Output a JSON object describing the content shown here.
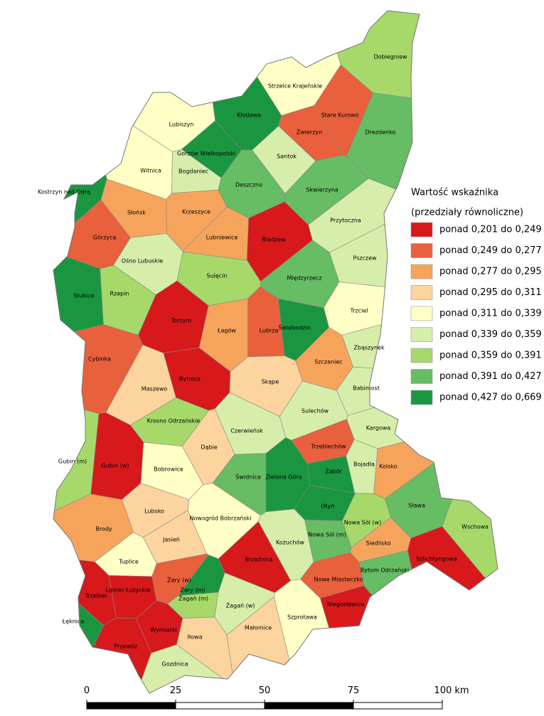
{
  "legend": {
    "title": "Wartość wskaźnika",
    "subtitle": "(przedziały równoliczne)",
    "classes": [
      {
        "label": "ponad 0,201 do 0,249",
        "color": "#d7191c"
      },
      {
        "label": "ponad 0,249 do 0,277",
        "color": "#e8603c"
      },
      {
        "label": "ponad 0,277 do 0,295",
        "color": "#f6a45c"
      },
      {
        "label": "ponad 0,295 do 0,311",
        "color": "#fdd49e"
      },
      {
        "label": "ponad 0,311 do 0,339",
        "color": "#ffffc6"
      },
      {
        "label": "ponad 0,339 do 0,359",
        "color": "#d6eeaa"
      },
      {
        "label": "ponad 0,359 do 0,391",
        "color": "#a6d96a"
      },
      {
        "label": "ponad 0,391 do 0,427",
        "color": "#66bd63"
      },
      {
        "label": "ponad 0,427 do 0,669",
        "color": "#1a9641"
      }
    ]
  },
  "regions": [
    {
      "label": "Dobiegniew",
      "color": "#a6d96a"
    },
    {
      "label": "Strzelce Krajeńskie",
      "color": "#ffffc6"
    },
    {
      "label": "Kłodawa",
      "color": "#1a9641"
    },
    {
      "label": "Stare Kurowo",
      "color": "#e8603c"
    },
    {
      "label": "Lubiszyn",
      "color": "#ffffc6"
    },
    {
      "label": "Zwierzyn",
      "color": "#e8603c"
    },
    {
      "label": "Drezdenko",
      "color": "#66bd63"
    },
    {
      "label": "Gorzów Wielkopolski",
      "color": "#1a9641"
    },
    {
      "label": "Santok",
      "color": "#d6eeaa"
    },
    {
      "label": "Witnica",
      "color": "#ffffc6"
    },
    {
      "label": "Bogdaniec",
      "color": "#d6eeaa"
    },
    {
      "label": "Deszczno",
      "color": "#66bd63"
    },
    {
      "label": "Skwierzyna",
      "color": "#66bd63"
    },
    {
      "label": "Kostrzyn nad Odrą",
      "color": "#1a9641"
    },
    {
      "label": "Słońsk",
      "color": "#f6a45c"
    },
    {
      "label": "Krzeszyce",
      "color": "#f6a45c"
    },
    {
      "label": "Przytoczna",
      "color": "#d6eeaa"
    },
    {
      "label": "Górzyca",
      "color": "#e8603c"
    },
    {
      "label": "Lubniewice",
      "color": "#f6a45c"
    },
    {
      "label": "Bledzew",
      "color": "#d7191c"
    },
    {
      "label": "Ośno Lubuskie",
      "color": "#d6eeaa"
    },
    {
      "label": "Pszczew",
      "color": "#d6eeaa"
    },
    {
      "label": "Sulęcin",
      "color": "#a6d96a"
    },
    {
      "label": "Międzyrzecz",
      "color": "#66bd63"
    },
    {
      "label": "Słubice",
      "color": "#1a9641"
    },
    {
      "label": "Rzepin",
      "color": "#a6d96a"
    },
    {
      "label": "Trzciel",
      "color": "#ffffc6"
    },
    {
      "label": "Torzym",
      "color": "#d7191c"
    },
    {
      "label": "Łagów",
      "color": "#f6a45c"
    },
    {
      "label": "Lubrza",
      "color": "#e8603c"
    },
    {
      "label": "Świebodzin",
      "color": "#1a9641"
    },
    {
      "label": "Zbąszynek",
      "color": "#d6eeaa"
    },
    {
      "label": "Cybinka",
      "color": "#e8603c"
    },
    {
      "label": "Szczaniec",
      "color": "#f6a45c"
    },
    {
      "label": "Bytnica",
      "color": "#d7191c"
    },
    {
      "label": "Skąpe",
      "color": "#fdd49e"
    },
    {
      "label": "Babimost",
      "color": "#d6eeaa"
    },
    {
      "label": "Maszewo",
      "color": "#fdd49e"
    },
    {
      "label": "Sulechów",
      "color": "#d6eeaa"
    },
    {
      "label": "Krosno Odrzańskie",
      "color": "#a6d96a"
    },
    {
      "label": "Kargowa",
      "color": "#d6eeaa"
    },
    {
      "label": "Czerwieńsk",
      "color": "#d6eeaa"
    },
    {
      "label": "Trzebiechów",
      "color": "#e8603c"
    },
    {
      "label": "Gubin (m)",
      "color": "#a6d96a"
    },
    {
      "label": "Gubin (w)",
      "color": "#d7191c"
    },
    {
      "label": "Dąbie",
      "color": "#fdd49e"
    },
    {
      "label": "Bojadła",
      "color": "#d6eeaa"
    },
    {
      "label": "Kolsko",
      "color": "#f6a45c"
    },
    {
      "label": "Bobrowice",
      "color": "#ffffc6"
    },
    {
      "label": "Zabór",
      "color": "#1a9641"
    },
    {
      "label": "Świdnica",
      "color": "#66bd63"
    },
    {
      "label": "Zielona Góra",
      "color": "#1a9641"
    },
    {
      "label": "Sława",
      "color": "#66bd63"
    },
    {
      "label": "Otyń",
      "color": "#1a9641"
    },
    {
      "label": "Lubsko",
      "color": "#fdd49e"
    },
    {
      "label": "Wschowa",
      "color": "#a6d96a"
    },
    {
      "label": "Nowogród Bobrzański",
      "color": "#ffffc6"
    },
    {
      "label": "Nowa Sól (w)",
      "color": "#a6d96a"
    },
    {
      "label": "Brody",
      "color": "#f6a45c"
    },
    {
      "label": "Jasień",
      "color": "#fdd49e"
    },
    {
      "label": "Nowa Sól (m)",
      "color": "#66bd63"
    },
    {
      "label": "Kożuchów",
      "color": "#d6eeaa"
    },
    {
      "label": "Siedlisko",
      "color": "#f6a45c"
    },
    {
      "label": "Szlichtyngowa",
      "color": "#d7191c"
    },
    {
      "label": "Tuplice",
      "color": "#ffffc6"
    },
    {
      "label": "Brzeźnica",
      "color": "#d7191c"
    },
    {
      "label": "Bytom Odrzański",
      "color": "#66bd63"
    },
    {
      "label": "Żary (w)",
      "color": "#e8603c"
    },
    {
      "label": "Nowe Miasteczko",
      "color": "#e8603c"
    },
    {
      "label": "Trzebiel",
      "color": "#d7191c"
    },
    {
      "label": "Lipinki Łużyckie",
      "color": "#d7191c"
    },
    {
      "label": "Żary (m)",
      "color": "#1a9641"
    },
    {
      "label": "Żagań (m)",
      "color": "#a6d96a"
    },
    {
      "label": "Niegosławice",
      "color": "#d7191c"
    },
    {
      "label": "Żagań (w)",
      "color": "#d6eeaa"
    },
    {
      "label": "Szprotawa",
      "color": "#ffffc6"
    },
    {
      "label": "Łęknica",
      "color": "#1a9641"
    },
    {
      "label": "Wymiarki",
      "color": "#d7191c"
    },
    {
      "label": "Małomice",
      "color": "#fdd49e"
    },
    {
      "label": "Przewóz",
      "color": "#d7191c"
    },
    {
      "label": "Iłowa",
      "color": "#fdd49e"
    },
    {
      "label": "Gozdnica",
      "color": "#d6eeaa"
    }
  ],
  "scale_bar": {
    "xlim": [
      0,
      100
    ],
    "ticks": [
      0,
      25,
      50,
      75,
      {
        "value": 100,
        "label": "100 km"
      }
    ]
  }
}
